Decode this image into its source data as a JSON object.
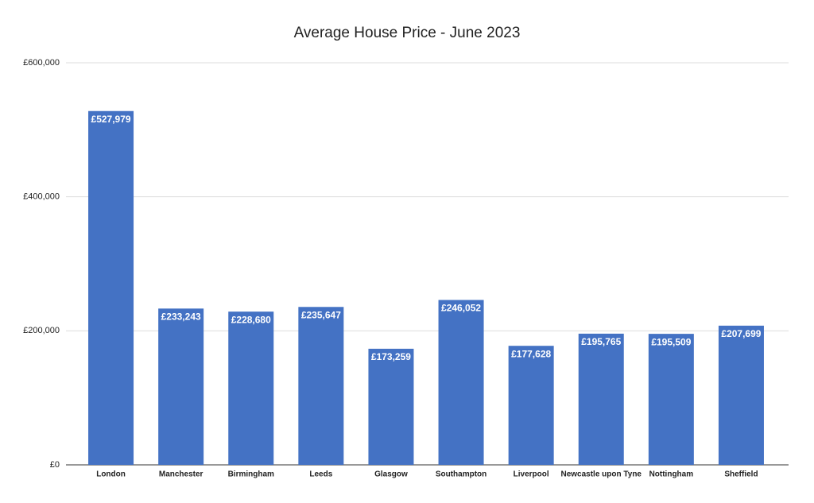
{
  "chart_data": {
    "type": "bar",
    "title": "Average House Price - June 2023",
    "categories": [
      "London",
      "Manchester",
      "Birmingham",
      "Leeds",
      "Glasgow",
      "Southampton",
      "Liverpool",
      "Newcastle upon Tyne",
      "Nottingham",
      "Sheffield"
    ],
    "values": [
      527979,
      233243,
      228680,
      235647,
      173259,
      246052,
      177628,
      195765,
      195509,
      207699
    ],
    "value_labels": [
      "£527,979",
      "£233,243",
      "£228,680",
      "£235,647",
      "£173,259",
      "£246,052",
      "£177,628",
      "£195,765",
      "£195,509",
      "£207,699"
    ],
    "color": "#4472c4",
    "ylim": [
      0,
      600000
    ],
    "yticks": [
      {
        "value": 0,
        "label": "£0"
      },
      {
        "value": 200000,
        "label": "£200,000"
      },
      {
        "value": 400000,
        "label": "£400,000"
      },
      {
        "value": 600000,
        "label": "£600,000"
      }
    ],
    "grid": true
  }
}
